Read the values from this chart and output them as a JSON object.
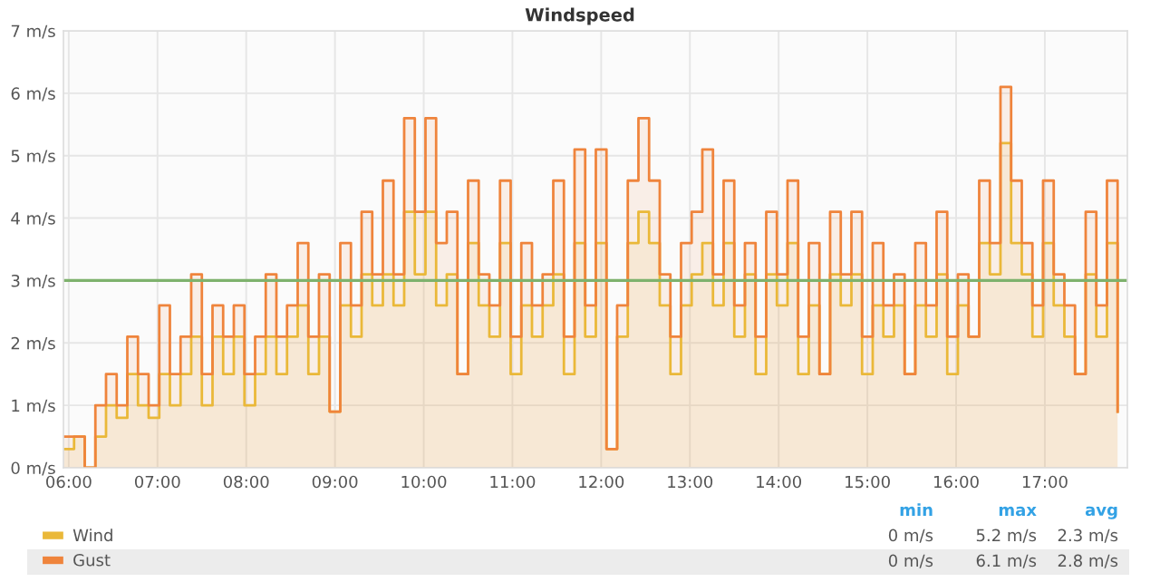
{
  "chart_data": {
    "type": "area",
    "title": "Windspeed",
    "x": [
      5.94,
      6.06,
      6.18,
      6.3,
      6.42,
      6.54,
      6.66,
      6.78,
      6.9,
      7.02,
      7.14,
      7.26,
      7.38,
      7.5,
      7.62,
      7.74,
      7.86,
      7.98,
      8.1,
      8.22,
      8.34,
      8.46,
      8.58,
      8.7,
      8.82,
      8.94,
      9.06,
      9.18,
      9.3,
      9.42,
      9.54,
      9.66,
      9.78,
      9.9,
      10.02,
      10.14,
      10.26,
      10.38,
      10.5,
      10.62,
      10.74,
      10.86,
      10.98,
      11.1,
      11.22,
      11.34,
      11.46,
      11.58,
      11.7,
      11.82,
      11.94,
      12.06,
      12.18,
      12.3,
      12.42,
      12.54,
      12.66,
      12.78,
      12.9,
      13.02,
      13.14,
      13.26,
      13.38,
      13.5,
      13.62,
      13.74,
      13.86,
      13.98,
      14.1,
      14.22,
      14.34,
      14.46,
      14.58,
      14.7,
      14.82,
      14.94,
      15.06,
      15.18,
      15.3,
      15.42,
      15.54,
      15.66,
      15.78,
      15.9,
      16.02,
      16.14,
      16.26,
      16.38,
      16.5,
      16.62,
      16.74,
      16.86,
      16.98,
      17.1,
      17.22,
      17.34,
      17.46,
      17.58,
      17.7,
      17.82
    ],
    "series": [
      {
        "name": "Wind",
        "color": "#eab839",
        "values": [
          0.3,
          0.5,
          0,
          0.5,
          1.0,
          0.8,
          1.5,
          1.0,
          0.8,
          1.5,
          1.0,
          1.5,
          2.1,
          1.0,
          2.1,
          1.5,
          2.1,
          1.0,
          1.5,
          2.1,
          1.5,
          2.1,
          2.6,
          1.5,
          2.1,
          0.9,
          2.6,
          2.1,
          3.1,
          2.6,
          3.1,
          2.6,
          4.1,
          3.1,
          4.1,
          2.6,
          3.1,
          1.5,
          3.6,
          2.6,
          2.1,
          3.6,
          1.5,
          2.6,
          2.1,
          2.6,
          3.1,
          1.5,
          3.6,
          2.1,
          3.6,
          0.3,
          2.1,
          3.6,
          4.1,
          3.6,
          2.6,
          1.5,
          2.6,
          3.1,
          3.6,
          2.6,
          3.6,
          2.1,
          3.1,
          1.5,
          3.1,
          2.6,
          3.6,
          1.5,
          2.6,
          1.5,
          3.1,
          2.6,
          3.1,
          1.5,
          2.6,
          2.1,
          2.6,
          1.5,
          2.6,
          2.1,
          3.1,
          1.5,
          2.6,
          2.1,
          3.6,
          3.1,
          5.2,
          3.6,
          3.1,
          2.1,
          3.6,
          2.6,
          2.1,
          1.5,
          3.1,
          2.1,
          3.6,
          0.9
        ]
      },
      {
        "name": "Gust",
        "color": "#ef843c",
        "values": [
          0.5,
          0.5,
          0,
          1.0,
          1.5,
          1.0,
          2.1,
          1.5,
          1.0,
          2.6,
          1.5,
          2.1,
          3.1,
          1.5,
          2.6,
          2.1,
          2.6,
          1.5,
          2.1,
          3.1,
          2.1,
          2.6,
          3.6,
          2.1,
          3.1,
          0.9,
          3.6,
          2.6,
          4.1,
          3.1,
          4.6,
          3.1,
          5.6,
          4.1,
          5.6,
          3.6,
          4.1,
          1.5,
          4.6,
          3.1,
          2.6,
          4.6,
          2.1,
          3.6,
          2.6,
          3.1,
          4.6,
          2.1,
          5.1,
          2.6,
          5.1,
          0.3,
          2.6,
          4.6,
          5.6,
          4.6,
          3.1,
          2.1,
          3.6,
          4.1,
          5.1,
          3.1,
          4.6,
          2.6,
          3.6,
          2.1,
          4.1,
          3.1,
          4.6,
          2.1,
          3.6,
          1.5,
          4.1,
          3.1,
          4.1,
          2.1,
          3.6,
          2.6,
          3.1,
          1.5,
          3.6,
          2.6,
          4.1,
          2.1,
          3.1,
          2.1,
          4.6,
          3.6,
          6.1,
          4.6,
          3.6,
          2.6,
          4.6,
          3.1,
          2.6,
          1.5,
          4.1,
          2.6,
          4.6,
          0.9
        ]
      }
    ],
    "xlim": [
      5.94,
      17.93
    ],
    "xticks": [
      {
        "value": 6,
        "label": "06:00"
      },
      {
        "value": 7,
        "label": "07:00"
      },
      {
        "value": 8,
        "label": "08:00"
      },
      {
        "value": 9,
        "label": "09:00"
      },
      {
        "value": 10,
        "label": "10:00"
      },
      {
        "value": 11,
        "label": "11:00"
      },
      {
        "value": 12,
        "label": "12:00"
      },
      {
        "value": 13,
        "label": "13:00"
      },
      {
        "value": 14,
        "label": "14:00"
      },
      {
        "value": 15,
        "label": "15:00"
      },
      {
        "value": 16,
        "label": "16:00"
      },
      {
        "value": 17,
        "label": "17:00"
      }
    ],
    "ylim": [
      0,
      7
    ],
    "yticks": [
      {
        "value": 0,
        "label": "0 m/s"
      },
      {
        "value": 1,
        "label": "1 m/s"
      },
      {
        "value": 2,
        "label": "2 m/s"
      },
      {
        "value": 3,
        "label": "3 m/s"
      },
      {
        "value": 4,
        "label": "4 m/s"
      },
      {
        "value": 5,
        "label": "5 m/s"
      },
      {
        "value": 6,
        "label": "6 m/s"
      },
      {
        "value": 7,
        "label": "7 m/s"
      }
    ],
    "ref_lines": [
      {
        "axis": "y",
        "value": 3,
        "color": "#7eb26d"
      }
    ],
    "grid": true,
    "legend": "bottom",
    "annotations": [
      "min",
      "max",
      "avg",
      "0 m/s",
      "5.2 m/s",
      "2.3 m/s",
      "0 m/s",
      "6.1 m/s",
      "2.8 m/s"
    ]
  }
}
